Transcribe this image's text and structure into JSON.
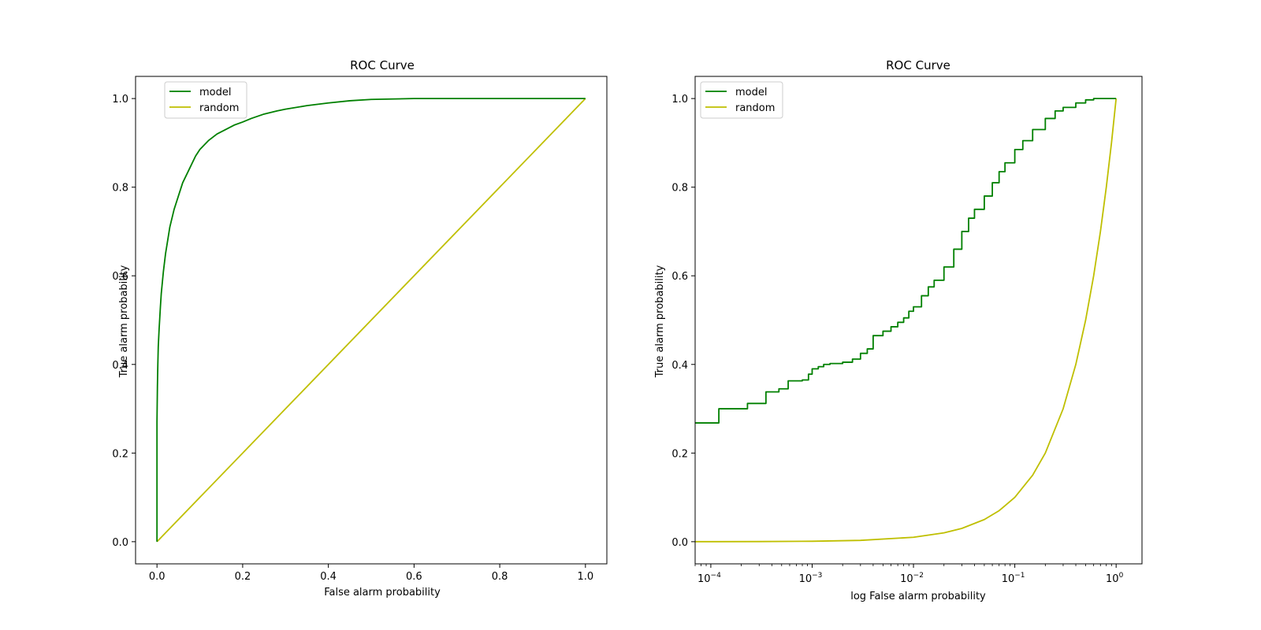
{
  "colors": {
    "model": "#008000",
    "random": "#bfbf00",
    "axes": "#000000",
    "background": "#ffffff"
  },
  "chart_data": [
    {
      "type": "line",
      "title": "ROC Curve",
      "xlabel": "False alarm probability",
      "ylabel": "True alarm probability",
      "xscale": "linear",
      "xlim": [
        -0.05,
        1.05
      ],
      "ylim": [
        -0.05,
        1.05
      ],
      "xticks": [
        0,
        0.2,
        0.4,
        0.6,
        0.8,
        1.0
      ],
      "xtick_labels": [
        "0.0",
        "0.2",
        "0.4",
        "0.6",
        "0.8",
        "1.0"
      ],
      "yticks": [
        0,
        0.2,
        0.4,
        0.6,
        0.8,
        1.0
      ],
      "ytick_labels": [
        "0.0",
        "0.2",
        "0.4",
        "0.6",
        "0.8",
        "1.0"
      ],
      "grid": false,
      "legend": "top-left",
      "series": [
        {
          "name": "model",
          "color": "#008000",
          "x": [
            0,
            0,
            0.0005,
            0.001,
            0.002,
            0.003,
            0.005,
            0.008,
            0.01,
            0.015,
            0.02,
            0.025,
            0.03,
            0.04,
            0.05,
            0.06,
            0.07,
            0.08,
            0.09,
            0.1,
            0.11,
            0.12,
            0.14,
            0.16,
            0.18,
            0.2,
            0.22,
            0.25,
            0.28,
            0.3,
            0.35,
            0.4,
            0.45,
            0.5,
            0.6,
            0.7,
            0.8,
            0.9,
            1.0
          ],
          "y": [
            0,
            0.27,
            0.31,
            0.35,
            0.4,
            0.44,
            0.48,
            0.53,
            0.56,
            0.61,
            0.65,
            0.68,
            0.71,
            0.75,
            0.78,
            0.81,
            0.83,
            0.85,
            0.87,
            0.885,
            0.895,
            0.905,
            0.92,
            0.93,
            0.94,
            0.947,
            0.955,
            0.965,
            0.972,
            0.976,
            0.984,
            0.99,
            0.995,
            0.998,
            1.0,
            1.0,
            1.0,
            1.0,
            1.0
          ]
        },
        {
          "name": "random",
          "color": "#bfbf00",
          "x": [
            0,
            1.0
          ],
          "y": [
            0,
            1.0
          ]
        }
      ]
    },
    {
      "type": "line",
      "title": "ROC Curve",
      "xlabel": "log False alarm probability",
      "ylabel": "True alarm probability",
      "xscale": "log",
      "xlim": [
        7e-05,
        1.8
      ],
      "ylim": [
        -0.05,
        1.05
      ],
      "xticks": [
        0.0001,
        0.001,
        0.01,
        0.1,
        1
      ],
      "xtick_labels": [
        {
          "base": "10",
          "exp": "−4"
        },
        {
          "base": "10",
          "exp": "−3"
        },
        {
          "base": "10",
          "exp": "−2"
        },
        {
          "base": "10",
          "exp": "−1"
        },
        {
          "base": "10",
          "exp": "0"
        }
      ],
      "yticks": [
        0,
        0.2,
        0.4,
        0.6,
        0.8,
        1.0
      ],
      "ytick_labels": [
        "0.0",
        "0.2",
        "0.4",
        "0.6",
        "0.8",
        "1.0"
      ],
      "grid": false,
      "legend": "top-left",
      "series": [
        {
          "name": "model",
          "color": "#008000",
          "step": true,
          "x": [
            7e-05,
            0.00012,
            0.00023,
            0.00035,
            0.00047,
            0.00058,
            0.0008,
            0.00092,
            0.001,
            0.00115,
            0.0013,
            0.0015,
            0.002,
            0.0025,
            0.003,
            0.0035,
            0.004,
            0.005,
            0.006,
            0.007,
            0.008,
            0.009,
            0.01,
            0.012,
            0.014,
            0.016,
            0.02,
            0.025,
            0.03,
            0.035,
            0.04,
            0.05,
            0.06,
            0.07,
            0.08,
            0.1,
            0.12,
            0.15,
            0.2,
            0.25,
            0.3,
            0.4,
            0.5,
            0.6,
            0.8,
            1.0
          ],
          "y": [
            0.268,
            0.3,
            0.312,
            0.338,
            0.345,
            0.363,
            0.365,
            0.378,
            0.39,
            0.395,
            0.4,
            0.402,
            0.405,
            0.412,
            0.425,
            0.435,
            0.465,
            0.475,
            0.485,
            0.495,
            0.505,
            0.52,
            0.53,
            0.555,
            0.575,
            0.59,
            0.62,
            0.66,
            0.7,
            0.73,
            0.75,
            0.78,
            0.81,
            0.835,
            0.855,
            0.885,
            0.905,
            0.93,
            0.955,
            0.972,
            0.98,
            0.99,
            0.997,
            1.0,
            1.0,
            1.0
          ]
        },
        {
          "name": "random",
          "color": "#bfbf00",
          "x": [
            7e-05,
            0.0001,
            0.0003,
            0.001,
            0.003,
            0.01,
            0.02,
            0.03,
            0.05,
            0.07,
            0.1,
            0.15,
            0.2,
            0.3,
            0.4,
            0.5,
            0.6,
            0.7,
            0.8,
            0.9,
            1.0
          ],
          "y": [
            7e-05,
            0.0001,
            0.0003,
            0.001,
            0.003,
            0.01,
            0.02,
            0.03,
            0.05,
            0.07,
            0.1,
            0.15,
            0.2,
            0.3,
            0.4,
            0.5,
            0.6,
            0.7,
            0.8,
            0.9,
            1.0
          ]
        }
      ]
    }
  ]
}
